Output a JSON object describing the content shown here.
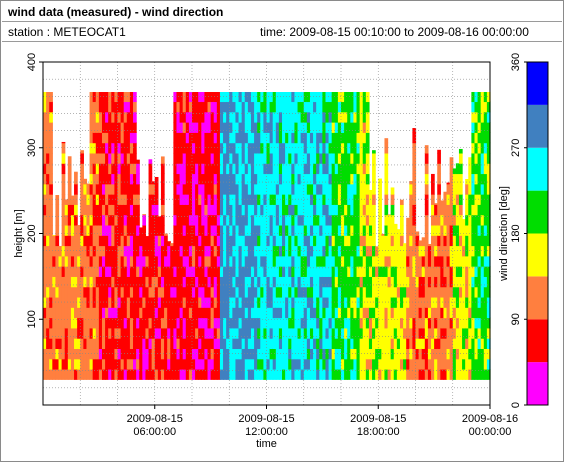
{
  "header": {
    "title": "wind data (measured) - wind direction",
    "station_label": "station : METEOCAT1",
    "time_label": "time: 2009-08-15 00:10:00 to 2009-08-16 00:00:00"
  },
  "colors": {
    "bin_0_45": "#ff00ff",
    "bin_45_90": "#ff0000",
    "bin_90_135": "#ff7f3f",
    "bin_135_180": "#ffff00",
    "bin_180_225": "#00dd00",
    "bin_225_270": "#00ffff",
    "bin_270_315": "#4080c0",
    "bin_315_360": "#0000ff",
    "grid": "#888888",
    "frame": "#8a8a8a"
  },
  "chart_data": {
    "type": "heatmap",
    "title": "wind data (measured) - wind direction",
    "xlabel": "time",
    "ylabel": "height [m]",
    "colorbar_label": "wind direction [deg]",
    "xlim": [
      0,
      24
    ],
    "ylim": [
      0,
      400
    ],
    "x_ticks": [
      {
        "hour": 6,
        "line1": "2009-08-15",
        "line2": "06:00:00"
      },
      {
        "hour": 12,
        "line1": "2009-08-15",
        "line2": "12:00:00"
      },
      {
        "hour": 18,
        "line1": "2009-08-15",
        "line2": "18:00:00"
      },
      {
        "hour": 24,
        "line1": "2009-08-16",
        "line2": "00:00:00"
      }
    ],
    "y_ticks": [
      "100",
      "200",
      "300",
      "400"
    ],
    "y_tick_values": [
      100,
      200,
      300,
      400
    ],
    "colorbar_ticks": [
      "0",
      "90",
      "180",
      "270",
      "360"
    ],
    "colorbar_tick_values": [
      0,
      90,
      180,
      270,
      360
    ],
    "colorbar_bins": [
      0,
      45,
      90,
      135,
      180,
      225,
      270,
      315,
      360
    ],
    "grid": true,
    "measured_height_range_m": [
      30,
      365
    ],
    "dominant_direction_by_period": [
      {
        "hours": [
          0,
          3
        ],
        "direction_deg": 110
      },
      {
        "hours": [
          3,
          7
        ],
        "direction_deg": 70
      },
      {
        "hours": [
          7,
          9.5
        ],
        "direction_deg": 60
      },
      {
        "hours": [
          9.5,
          11.5
        ],
        "direction_deg": 280
      },
      {
        "hours": [
          11.5,
          15.5
        ],
        "direction_deg": 250
      },
      {
        "hours": [
          15.5,
          17
        ],
        "direction_deg": 200
      },
      {
        "hours": [
          17,
          19.5
        ],
        "direction_deg": 160
      },
      {
        "hours": [
          19.5,
          22
        ],
        "direction_deg": 110
      },
      {
        "hours": [
          22,
          23
        ],
        "direction_deg": 160
      },
      {
        "hours": [
          23,
          24
        ],
        "direction_deg": 200
      }
    ]
  }
}
